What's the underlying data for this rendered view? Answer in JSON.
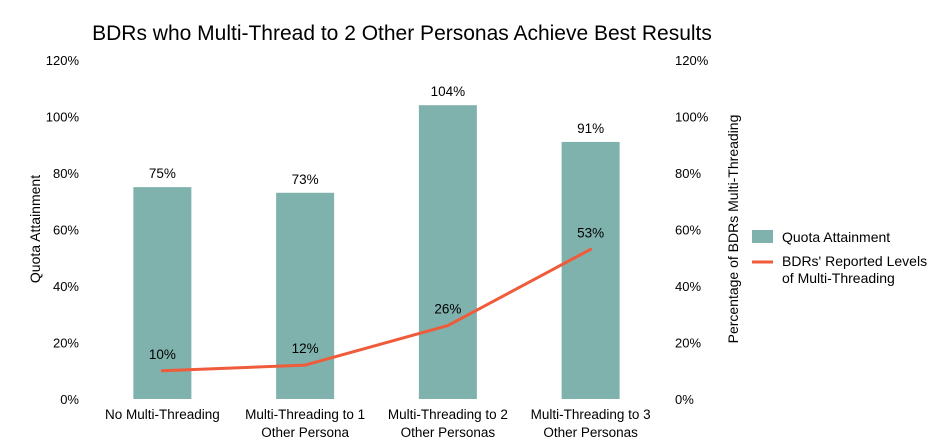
{
  "chart_data": {
    "type": "bar",
    "title": "BDRs who Multi-Thread to 2 Other Personas Achieve Best Results",
    "categories": [
      [
        "No Multi-Threading"
      ],
      [
        "Multi-Threading to 1",
        "Other Persona"
      ],
      [
        "Multi-Threading to 2",
        "Other Personas"
      ],
      [
        "Multi-Threading to 3",
        "Other Personas"
      ]
    ],
    "ylabel": "Quota Attainment",
    "y2label": "Percentage of BDRs Multi-Threading",
    "ylim": [
      0,
      120
    ],
    "y2lim": [
      0,
      120
    ],
    "yticks": [
      "0%",
      "20%",
      "40%",
      "60%",
      "80%",
      "100%",
      "120%"
    ],
    "y2ticks": [
      "0%",
      "20%",
      "40%",
      "60%",
      "80%",
      "100%",
      "120%"
    ],
    "grid": false,
    "legend_position": "right",
    "series": [
      {
        "name": "Quota Attainment",
        "type": "bar",
        "axis": "left",
        "color": "#7fb2ad",
        "values": [
          75,
          73,
          104,
          91
        ],
        "labels": [
          "75%",
          "73%",
          "104%",
          "91%"
        ]
      },
      {
        "name": "BDRs' Reported Levels of Multi-Threading",
        "legend_lines": [
          "BDRs' Reported Levels",
          "of Multi-Threading"
        ],
        "type": "line",
        "axis": "right",
        "color": "#ef5b3b",
        "values": [
          10,
          12,
          26,
          53
        ],
        "labels": [
          "10%",
          "12%",
          "26%",
          "53%"
        ]
      }
    ]
  }
}
